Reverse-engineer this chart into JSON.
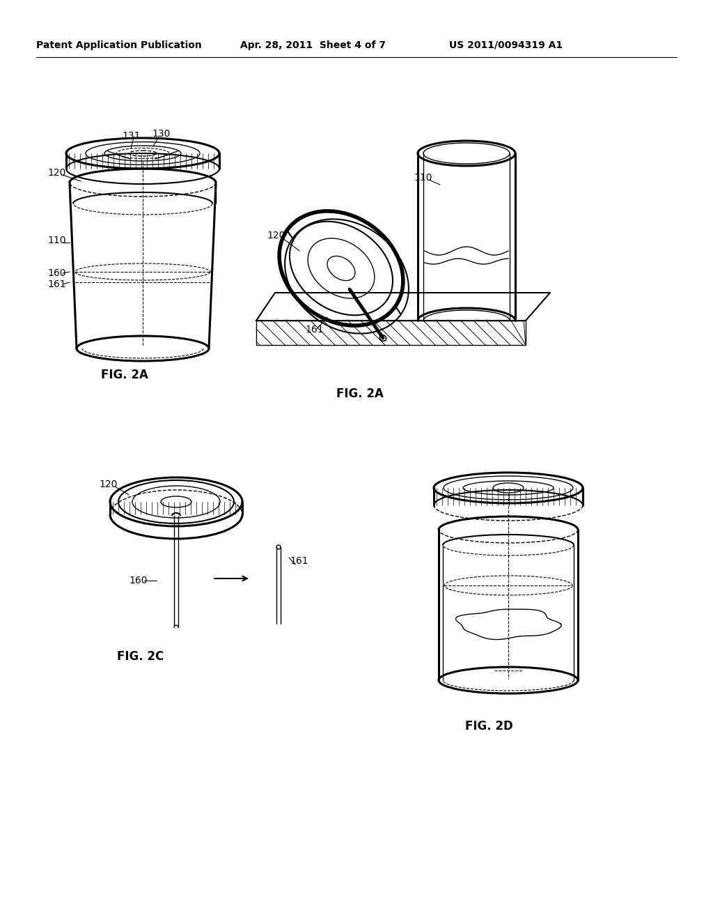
{
  "background_color": "#ffffff",
  "header_left": "Patent Application Publication",
  "header_center": "Apr. 28, 2011  Sheet 4 of 7",
  "header_right": "US 2011/0094319 A1",
  "fig2a_left_label": "FIG. 2A",
  "fig2a_right_label": "FIG. 2A",
  "fig2c_label": "FIG. 2C",
  "fig2d_label": "FIG. 2D"
}
